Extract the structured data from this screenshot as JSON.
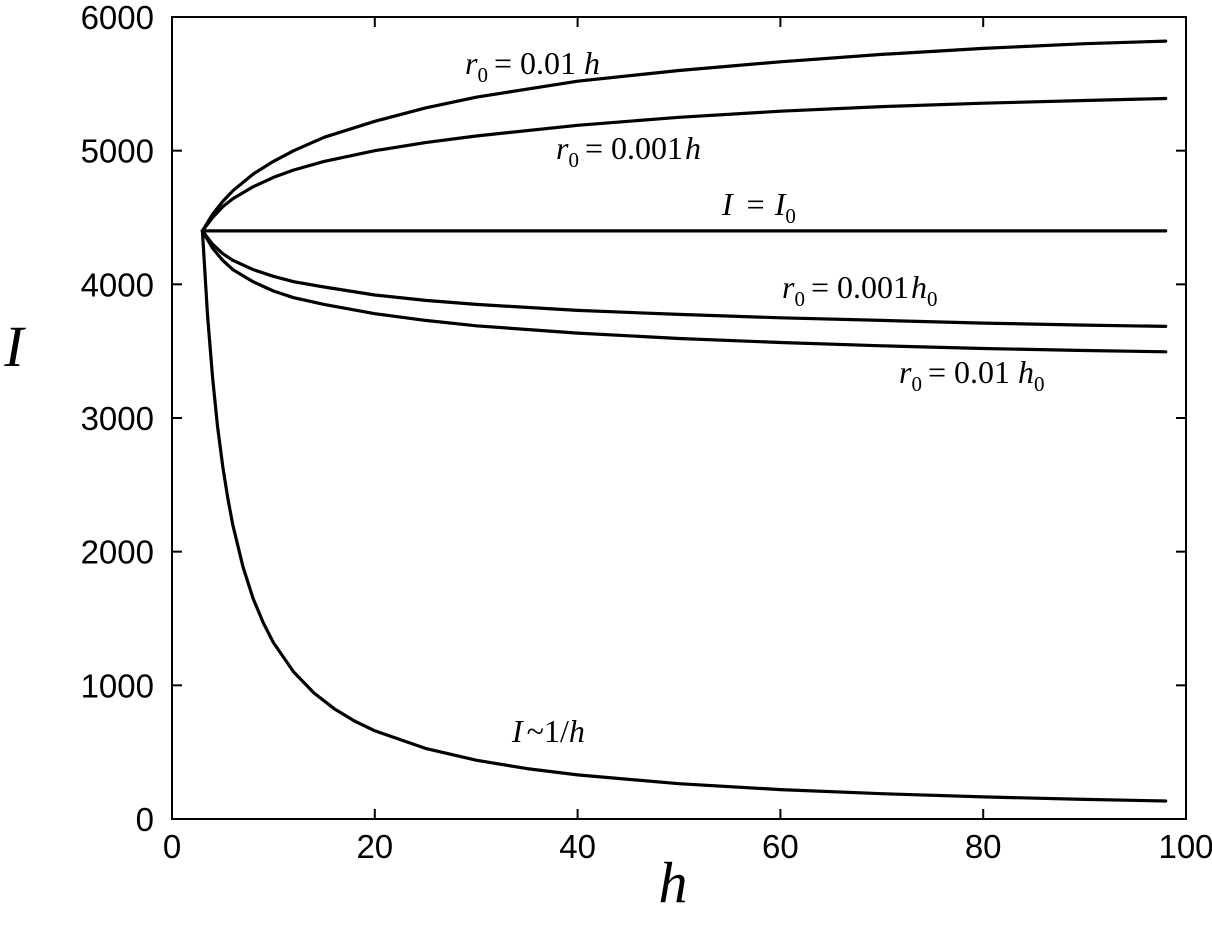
{
  "chart_data": {
    "type": "line",
    "title": "",
    "xlabel": "h",
    "ylabel": "I",
    "xlim": [
      0,
      100
    ],
    "ylim": [
      0,
      6000
    ],
    "xticks": [
      0,
      20,
      40,
      60,
      80,
      100
    ],
    "yticks": [
      0,
      1000,
      2000,
      3000,
      4000,
      5000,
      6000
    ],
    "grid": false,
    "series": [
      {
        "x": [
          3,
          4,
          5,
          6,
          8,
          10,
          12,
          15,
          20,
          25,
          30,
          40,
          50,
          60,
          70,
          80,
          90,
          98
        ],
        "y": [
          4400,
          4525,
          4620,
          4700,
          4825,
          4920,
          5000,
          5100,
          5220,
          5320,
          5400,
          5520,
          5600,
          5665,
          5720,
          5765,
          5800,
          5820
        ]
      },
      {
        "x": [
          3,
          4,
          5,
          6,
          8,
          10,
          12,
          15,
          20,
          25,
          30,
          40,
          50,
          60,
          70,
          80,
          90,
          98
        ],
        "y": [
          4400,
          4500,
          4580,
          4640,
          4730,
          4800,
          4855,
          4920,
          5000,
          5060,
          5110,
          5190,
          5250,
          5295,
          5330,
          5355,
          5375,
          5390
        ]
      },
      {
        "x": [
          3,
          98
        ],
        "y": [
          4400,
          4400
        ]
      },
      {
        "x": [
          3,
          4,
          5,
          6,
          8,
          10,
          12,
          15,
          20,
          25,
          30,
          40,
          50,
          60,
          70,
          80,
          90,
          98
        ],
        "y": [
          4400,
          4300,
          4230,
          4180,
          4110,
          4060,
          4020,
          3980,
          3920,
          3880,
          3850,
          3805,
          3775,
          3750,
          3730,
          3710,
          3695,
          3685
        ]
      },
      {
        "x": [
          3,
          4,
          5,
          6,
          8,
          10,
          12,
          15,
          20,
          25,
          30,
          40,
          50,
          60,
          70,
          80,
          90,
          98
        ],
        "y": [
          4400,
          4270,
          4180,
          4110,
          4020,
          3950,
          3900,
          3850,
          3780,
          3730,
          3690,
          3635,
          3595,
          3565,
          3540,
          3520,
          3505,
          3495
        ]
      },
      {
        "x": [
          3,
          3.5,
          4,
          4.5,
          5,
          5.5,
          6,
          7,
          8,
          9,
          10,
          12,
          14,
          16,
          18,
          20,
          25,
          30,
          35,
          40,
          50,
          60,
          70,
          80,
          90,
          98
        ],
        "y": [
          4400,
          3771,
          3300,
          2933,
          2640,
          2400,
          2200,
          1886,
          1650,
          1467,
          1320,
          1100,
          943,
          825,
          733,
          660,
          528,
          440,
          377,
          330,
          264,
          220,
          189,
          165,
          147,
          135
        ]
      }
    ],
    "annotations": [
      {
        "main": "r",
        "sub": "0",
        "rest": "= 0.01",
        "var": "h",
        "var_sub": ""
      },
      {
        "main": "r",
        "sub": "0",
        "rest": "= 0.001",
        "var": "h",
        "var_sub": ""
      },
      {
        "main": "I",
        "sub": "",
        "rest": "=",
        "var": "I",
        "var_sub": "0"
      },
      {
        "main": "r",
        "sub": "0",
        "rest": "= 0.001",
        "var": "h",
        "var_sub": "0"
      },
      {
        "main": "r",
        "sub": "0",
        "rest": "= 0.01",
        "var": "h",
        "var_sub": "0"
      },
      {
        "main": "I",
        "sub": "",
        "rest": "~1/",
        "var": "h",
        "var_sub": ""
      }
    ]
  }
}
